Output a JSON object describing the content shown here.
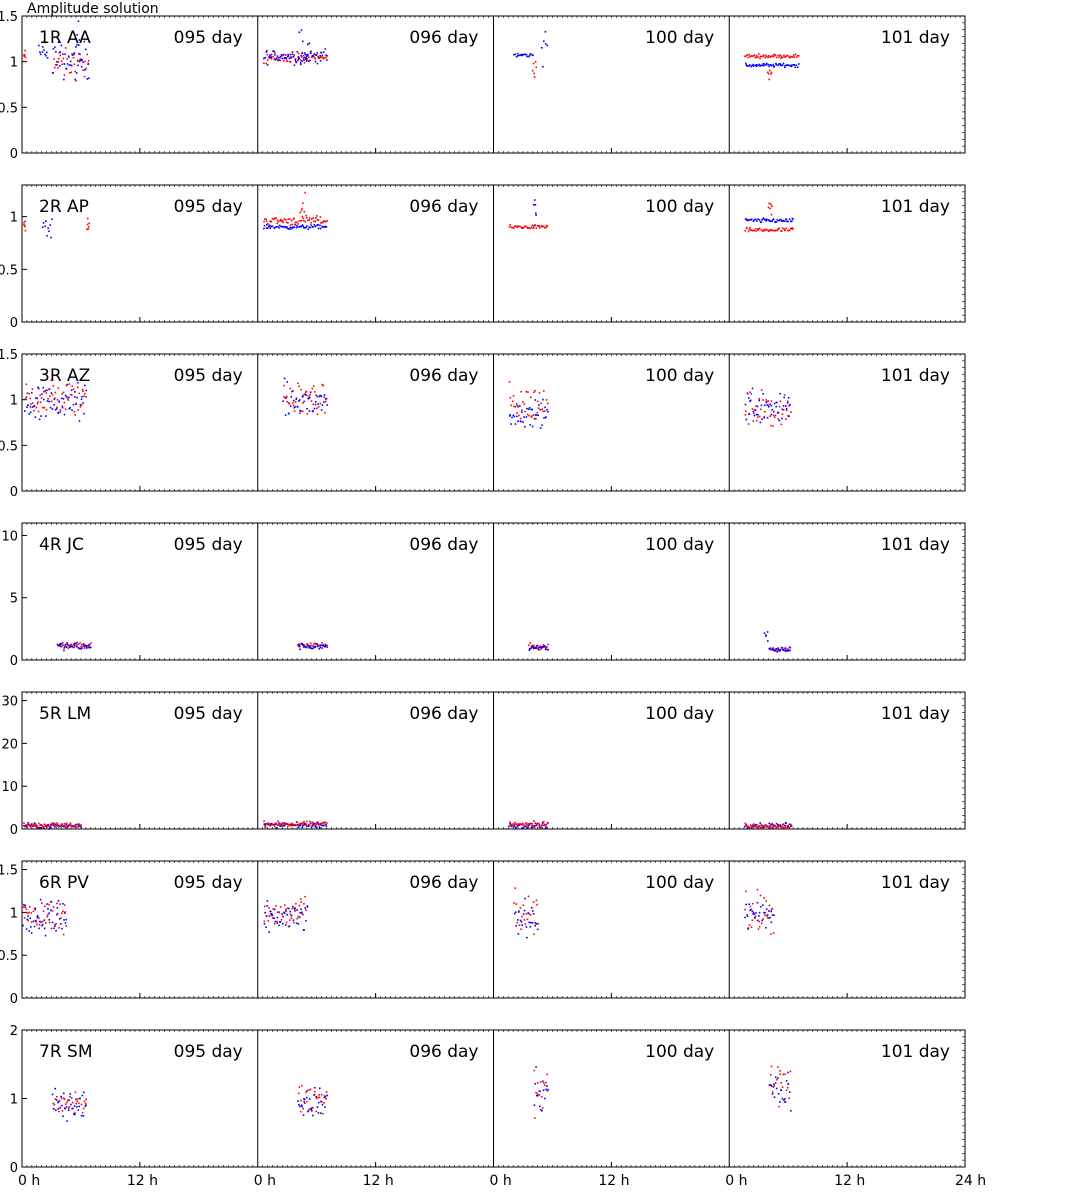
{
  "chart_data": {
    "type": "scatter",
    "title": "Amplitude solution",
    "day_labels": [
      "095 day",
      "096 day",
      "100 day",
      "101 day"
    ],
    "x_axis": {
      "range_hours": [
        0,
        24
      ],
      "tick_labels": [
        "0 h",
        "12 h",
        "24 h"
      ]
    },
    "series_colors": [
      "#ff0000",
      "#0000ff"
    ],
    "panels": [
      {
        "label": "1R AA",
        "ylim": [
          0,
          1.5
        ],
        "yticks": [
          "0",
          "0.5",
          "1",
          "1.5"
        ],
        "yticks_values": [
          0,
          0.5,
          1,
          1.5
        ],
        "clusters": [
          {
            "day": 0,
            "series": 0,
            "hours": [
              0.1,
              0.3
            ],
            "center": 1.05,
            "spread": 0.04
          },
          {
            "day": 0,
            "series": 1,
            "hours": [
              1.6,
              2.6
            ],
            "center": 1.12,
            "spread": 0.05
          },
          {
            "day": 0,
            "series": 0,
            "hours": [
              3.0,
              6.8
            ],
            "center": 0.98,
            "spread": 0.08
          },
          {
            "day": 0,
            "series": 1,
            "hours": [
              3.0,
              6.8
            ],
            "center": 1.02,
            "spread": 0.1
          },
          {
            "day": 0,
            "series": 1,
            "hours": [
              5.4,
              5.9
            ],
            "center": 1.25,
            "spread": 0.15
          },
          {
            "day": 1,
            "series": 0,
            "hours": [
              0.5,
              7.0
            ],
            "center": 1.05,
            "spread": 0.03
          },
          {
            "day": 1,
            "series": 1,
            "hours": [
              0.5,
              7.0
            ],
            "center": 1.07,
            "spread": 0.04
          },
          {
            "day": 1,
            "series": 1,
            "hours": [
              4.0,
              5.2
            ],
            "center": 1.1,
            "spread": 0.15
          },
          {
            "day": 2,
            "series": 1,
            "hours": [
              2.0,
              4.0
            ],
            "center": 1.08,
            "spread": 0.01
          },
          {
            "day": 2,
            "series": 0,
            "hours": [
              3.9,
              4.3
            ],
            "center": 0.95,
            "spread": 0.06
          },
          {
            "day": 2,
            "series": 1,
            "hours": [
              4.8,
              5.4
            ],
            "center": 1.15,
            "spread": 0.12
          },
          {
            "day": 3,
            "series": 0,
            "hours": [
              1.5,
              7.0
            ],
            "center": 1.07,
            "spread": 0.01
          },
          {
            "day": 3,
            "series": 1,
            "hours": [
              1.5,
              7.0
            ],
            "center": 0.97,
            "spread": 0.01
          },
          {
            "day": 3,
            "series": 0,
            "hours": [
              3.8,
              4.3
            ],
            "center": 0.88,
            "spread": 0.03
          }
        ]
      },
      {
        "label": "2R AP",
        "ylim": [
          0,
          1.3
        ],
        "yticks": [
          "0",
          "0.5",
          "1"
        ],
        "yticks_values": [
          0,
          0.5,
          1
        ],
        "clusters": [
          {
            "day": 0,
            "series": 0,
            "hours": [
              0.1,
              0.3
            ],
            "center": 0.94,
            "spread": 0.03
          },
          {
            "day": 0,
            "series": 1,
            "hours": [
              2.0,
              3.0
            ],
            "center": 0.89,
            "spread": 0.04
          },
          {
            "day": 0,
            "series": 0,
            "hours": [
              6.5,
              6.8
            ],
            "center": 0.93,
            "spread": 0.03
          },
          {
            "day": 1,
            "series": 0,
            "hours": [
              0.5,
              7.0
            ],
            "center": 0.97,
            "spread": 0.02
          },
          {
            "day": 1,
            "series": 1,
            "hours": [
              0.5,
              7.0
            ],
            "center": 0.91,
            "spread": 0.01
          },
          {
            "day": 1,
            "series": 0,
            "hours": [
              4.2,
              4.8
            ],
            "center": 1.08,
            "spread": 0.06
          },
          {
            "day": 2,
            "series": 0,
            "hours": [
              1.5,
              5.5
            ],
            "center": 0.91,
            "spread": 0.01
          },
          {
            "day": 2,
            "series": 1,
            "hours": [
              4.0,
              4.3
            ],
            "center": 1.05,
            "spread": 0.07
          },
          {
            "day": 3,
            "series": 1,
            "hours": [
              1.5,
              6.5
            ],
            "center": 0.97,
            "spread": 0.01
          },
          {
            "day": 3,
            "series": 0,
            "hours": [
              1.5,
              6.5
            ],
            "center": 0.88,
            "spread": 0.01
          },
          {
            "day": 3,
            "series": 0,
            "hours": [
              3.9,
              4.3
            ],
            "center": 1.08,
            "spread": 0.05
          }
        ]
      },
      {
        "label": "3R AZ",
        "ylim": [
          0,
          1.5
        ],
        "yticks": [
          "0",
          "0.5",
          "1",
          "1.5"
        ],
        "yticks_values": [
          0,
          0.5,
          1,
          1.5
        ],
        "clusters": [
          {
            "day": 0,
            "series": 0,
            "hours": [
              0.2,
              6.5
            ],
            "center": 1.02,
            "spread": 0.1
          },
          {
            "day": 0,
            "series": 1,
            "hours": [
              0.2,
              6.5
            ],
            "center": 0.98,
            "spread": 0.1
          },
          {
            "day": 1,
            "series": 0,
            "hours": [
              2.5,
              7.0
            ],
            "center": 1.02,
            "spread": 0.1
          },
          {
            "day": 1,
            "series": 1,
            "hours": [
              2.5,
              7.0
            ],
            "center": 0.98,
            "spread": 0.1
          },
          {
            "day": 2,
            "series": 0,
            "hours": [
              1.5,
              5.5
            ],
            "center": 0.95,
            "spread": 0.1
          },
          {
            "day": 2,
            "series": 1,
            "hours": [
              1.5,
              5.5
            ],
            "center": 0.85,
            "spread": 0.07
          },
          {
            "day": 3,
            "series": 0,
            "hours": [
              1.5,
              6.2
            ],
            "center": 0.9,
            "spread": 0.1
          },
          {
            "day": 3,
            "series": 1,
            "hours": [
              1.5,
              6.2
            ],
            "center": 0.95,
            "spread": 0.1
          }
        ]
      },
      {
        "label": "4R JC",
        "ylim": [
          0,
          11
        ],
        "yticks": [
          "0",
          "5",
          "10"
        ],
        "yticks_values": [
          0,
          5,
          10
        ],
        "clusters": [
          {
            "day": 0,
            "series": 0,
            "hours": [
              3.5,
              7.0
            ],
            "center": 1.25,
            "spread": 0.15
          },
          {
            "day": 0,
            "series": 1,
            "hours": [
              3.5,
              7.0
            ],
            "center": 1.15,
            "spread": 0.15
          },
          {
            "day": 1,
            "series": 0,
            "hours": [
              4.0,
              7.0
            ],
            "center": 1.25,
            "spread": 0.12
          },
          {
            "day": 1,
            "series": 1,
            "hours": [
              4.0,
              7.0
            ],
            "center": 1.15,
            "spread": 0.12
          },
          {
            "day": 2,
            "series": 0,
            "hours": [
              3.5,
              5.5
            ],
            "center": 1.1,
            "spread": 0.15
          },
          {
            "day": 2,
            "series": 1,
            "hours": [
              3.5,
              5.5
            ],
            "center": 1.1,
            "spread": 0.15
          },
          {
            "day": 3,
            "series": 1,
            "hours": [
              3.5,
              4.0
            ],
            "center": 1.9,
            "spread": 0.4
          },
          {
            "day": 3,
            "series": 0,
            "hours": [
              4.0,
              6.2
            ],
            "center": 0.9,
            "spread": 0.1
          },
          {
            "day": 3,
            "series": 1,
            "hours": [
              4.0,
              6.2
            ],
            "center": 0.9,
            "spread": 0.1
          }
        ]
      },
      {
        "label": "5R LM",
        "ylim": [
          0,
          32
        ],
        "yticks": [
          "0",
          "10",
          "20",
          "30"
        ],
        "yticks_values": [
          0,
          10,
          20,
          30
        ],
        "clusters": [
          {
            "day": 0,
            "series": 1,
            "hours": [
              0.1,
              6.0
            ],
            "center": 0.9,
            "spread": 0.3
          },
          {
            "day": 0,
            "series": 0,
            "hours": [
              0.1,
              6.0
            ],
            "center": 1.1,
            "spread": 0.3
          },
          {
            "day": 1,
            "series": 1,
            "hours": [
              0.5,
              7.0
            ],
            "center": 1.1,
            "spread": 0.3
          },
          {
            "day": 1,
            "series": 0,
            "hours": [
              0.5,
              7.0
            ],
            "center": 1.3,
            "spread": 0.3
          },
          {
            "day": 2,
            "series": 1,
            "hours": [
              1.5,
              5.5
            ],
            "center": 1.0,
            "spread": 0.4
          },
          {
            "day": 2,
            "series": 0,
            "hours": [
              1.5,
              5.5
            ],
            "center": 1.2,
            "spread": 0.4
          },
          {
            "day": 3,
            "series": 1,
            "hours": [
              1.5,
              6.3
            ],
            "center": 1.0,
            "spread": 0.3
          },
          {
            "day": 3,
            "series": 0,
            "hours": [
              1.5,
              6.3
            ],
            "center": 0.9,
            "spread": 0.3
          }
        ]
      },
      {
        "label": "6R PV",
        "ylim": [
          0,
          1.6
        ],
        "yticks": [
          "0",
          "0.5",
          "1",
          "1.5"
        ],
        "yticks_values": [
          0,
          0.5,
          1,
          1.5
        ],
        "clusters": [
          {
            "day": 0,
            "series": 0,
            "hours": [
              0.0,
              4.5
            ],
            "center": 0.98,
            "spread": 0.1
          },
          {
            "day": 0,
            "series": 1,
            "hours": [
              0.0,
              4.5
            ],
            "center": 0.95,
            "spread": 0.1
          },
          {
            "day": 1,
            "series": 0,
            "hours": [
              0.5,
              5.0
            ],
            "center": 0.98,
            "spread": 0.1
          },
          {
            "day": 1,
            "series": 1,
            "hours": [
              0.5,
              5.0
            ],
            "center": 0.95,
            "spread": 0.08
          },
          {
            "day": 2,
            "series": 0,
            "hours": [
              2.0,
              4.5
            ],
            "center": 0.98,
            "spread": 0.12
          },
          {
            "day": 2,
            "series": 1,
            "hours": [
              2.0,
              4.5
            ],
            "center": 0.95,
            "spread": 0.1
          },
          {
            "day": 3,
            "series": 0,
            "hours": [
              1.5,
              4.5
            ],
            "center": 0.98,
            "spread": 0.12
          },
          {
            "day": 3,
            "series": 1,
            "hours": [
              1.5,
              4.5
            ],
            "center": 0.95,
            "spread": 0.1
          }
        ]
      },
      {
        "label": "7R SM",
        "ylim": [
          0,
          2
        ],
        "yticks": [
          "0",
          "1",
          "2"
        ],
        "yticks_values": [
          0,
          1,
          2
        ],
        "clusters": [
          {
            "day": 0,
            "series": 0,
            "hours": [
              3.0,
              6.5
            ],
            "center": 0.95,
            "spread": 0.1
          },
          {
            "day": 0,
            "series": 1,
            "hours": [
              3.0,
              6.5
            ],
            "center": 0.92,
            "spread": 0.1
          },
          {
            "day": 1,
            "series": 0,
            "hours": [
              4.0,
              7.0
            ],
            "center": 1.0,
            "spread": 0.1
          },
          {
            "day": 1,
            "series": 1,
            "hours": [
              4.0,
              7.0
            ],
            "center": 0.95,
            "spread": 0.1
          },
          {
            "day": 2,
            "series": 0,
            "hours": [
              4.0,
              5.5
            ],
            "center": 1.15,
            "spread": 0.2
          },
          {
            "day": 2,
            "series": 1,
            "hours": [
              4.0,
              5.5
            ],
            "center": 1.1,
            "spread": 0.2
          },
          {
            "day": 3,
            "series": 0,
            "hours": [
              4.0,
              6.2
            ],
            "center": 1.2,
            "spread": 0.18
          },
          {
            "day": 3,
            "series": 1,
            "hours": [
              4.0,
              6.2
            ],
            "center": 1.15,
            "spread": 0.15
          }
        ]
      }
    ]
  }
}
